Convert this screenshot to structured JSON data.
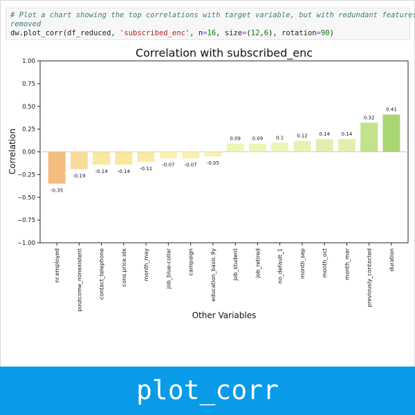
{
  "code": {
    "comment_line1": "# Plot a chart showing the top correlations with target variable, but with redundant features",
    "comment_line2": "removed",
    "call_prefix": "dw.plot_corr(df_reduced, ",
    "call_target": "'subscribed_enc'",
    "call_n_key": ", n",
    "call_eq": "=",
    "call_n_val": "16",
    "call_size_key": ", size",
    "call_size_val_a": "12",
    "call_size_sep": ",",
    "call_size_val_b": "6",
    "call_rot_key": "), rotation",
    "call_rot_val": "90",
    "call_end": ")"
  },
  "chart_data": {
    "type": "bar",
    "title": "Correlation with subscribed_enc",
    "xlabel": "Other Variables",
    "ylabel": "Correlation",
    "ylim": [
      -1.0,
      1.0
    ],
    "yticks": [
      "1.00",
      "0.75",
      "0.50",
      "0.25",
      "0.00",
      "−0.25",
      "−0.50",
      "−0.75",
      "−1.00"
    ],
    "categories": [
      "nr.employed",
      "poutcome_nonexistent",
      "contact_telephone",
      "cons.price.idx",
      "month_may",
      "job_blue-collar",
      "campaign",
      "education_basic.9y",
      "job_student",
      "job_retired",
      "no_default_1",
      "month_sep",
      "month_oct",
      "month_mar",
      "previously_contacted",
      "duration"
    ],
    "values": [
      -0.35,
      -0.19,
      -0.14,
      -0.14,
      -0.11,
      -0.07,
      -0.07,
      -0.05,
      0.09,
      0.09,
      0.1,
      0.12,
      0.14,
      0.14,
      0.32,
      0.41
    ],
    "value_labels": [
      "-0.35",
      "-0.19",
      "-0.14",
      "-0.14",
      "-0.11",
      "-0.07",
      "-0.07",
      "-0.05",
      "0.09",
      "0.09",
      "0.1",
      "0.12",
      "0.14",
      "0.14",
      "0.32",
      "0.41"
    ],
    "colors": [
      "#f4bc7f",
      "#f9dc9b",
      "#fae7a0",
      "#fae7a0",
      "#fbeaa3",
      "#fbf0ab",
      "#fbf0ab",
      "#fbf1ad",
      "#eef5b8",
      "#eef5b8",
      "#ecf4b6",
      "#e6f2b2",
      "#e1efae",
      "#e1efae",
      "#c3e28c",
      "#a9d672"
    ],
    "grid": false
  },
  "banner": {
    "title": "plot_corr"
  }
}
